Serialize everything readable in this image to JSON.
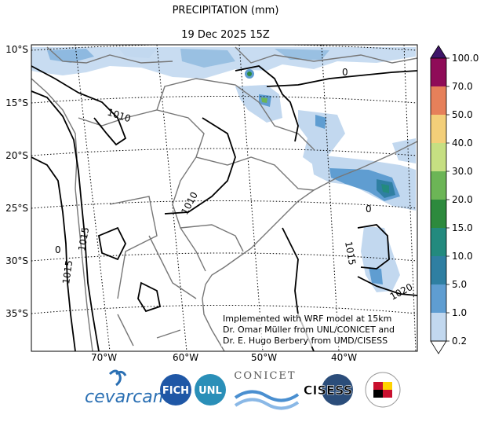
{
  "title": "PRECIPITATION (mm)",
  "subtitle": "19 Dec 2025 15Z",
  "lat_labels": [
    "10°S",
    "15°S",
    "20°S",
    "25°S",
    "30°S",
    "35°S"
  ],
  "lon_labels": [
    "70°W",
    "60°W",
    "50°W",
    "40°W"
  ],
  "colorbar": {
    "ticks": [
      "100.0",
      "70.0",
      "50.0",
      "40.0",
      "30.0",
      "20.0",
      "15.0",
      "10.0",
      "5.0",
      "1.0",
      "0.2"
    ],
    "colors": [
      "#8f0c58",
      "#e6805a",
      "#f3cf79",
      "#c6df82",
      "#6cb556",
      "#2d8a3d",
      "#238a7e",
      "#2f7fa2",
      "#5f9dd1",
      "#c2d8ef",
      "#ffffff"
    ],
    "extend_color": "#3f1669"
  },
  "isobar_labels": [
    "1010",
    "1010",
    "1015",
    "1015",
    "1015",
    "1020",
    "0",
    "0",
    "0"
  ],
  "credit": {
    "line1": "Implemented with WRF model at 15km",
    "line2": "Dr. Omar Müller from UNL/CONICET and",
    "line3": "Dr. E. Hugo Berbery from UMD/CISESS"
  },
  "logos": {
    "cevarcam": "cevarcam",
    "fich": "FICH",
    "unl": "UNL",
    "conicet": "CONICET",
    "cisess": "CISESS"
  }
}
